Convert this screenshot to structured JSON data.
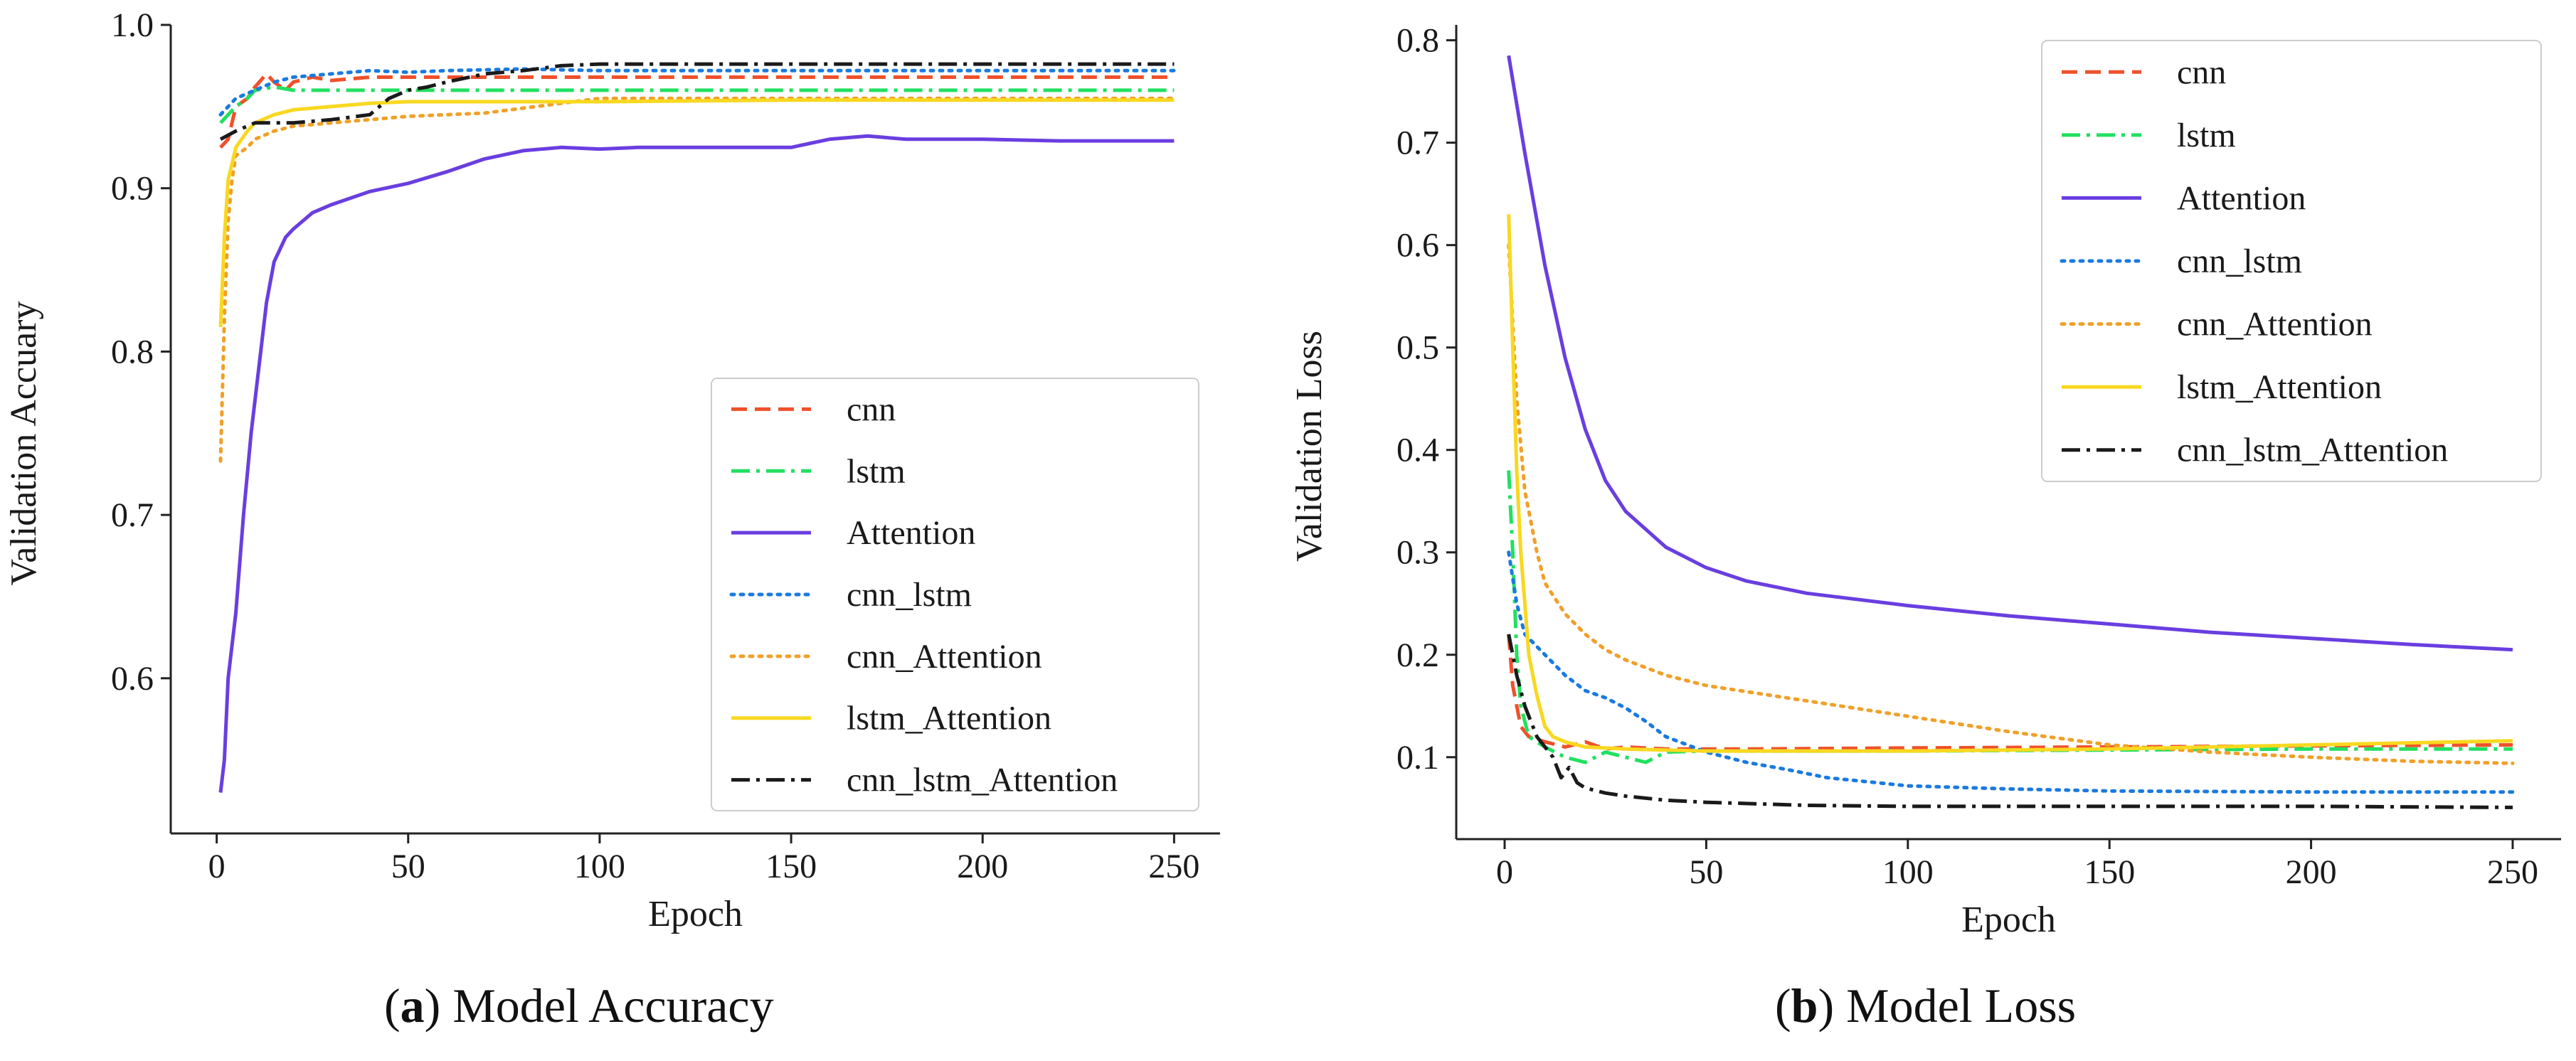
{
  "chart_data": [
    {
      "type": "line",
      "panel": "a",
      "caption_tag": "a",
      "caption_title": "Model Accuracy",
      "xlabel": "Epoch",
      "ylabel": "Validation Accuary",
      "xlim": [
        -12,
        262
      ],
      "ylim": [
        0.505,
        1.0
      ],
      "xticks": [
        0,
        50,
        100,
        150,
        200,
        250
      ],
      "yticks": [
        0.6,
        0.7,
        0.8,
        0.9,
        1.0
      ],
      "ytick_labels": [
        "0.6",
        "0.7",
        "0.8",
        "0.9",
        "1.0"
      ],
      "legend_position": "lower-right",
      "series": [
        {
          "name": "cnn",
          "color": "#f0502a",
          "dash": "dashed",
          "points": [
            [
              1,
              0.925
            ],
            [
              3,
              0.93
            ],
            [
              5,
              0.95
            ],
            [
              8,
              0.955
            ],
            [
              10,
              0.962
            ],
            [
              13,
              0.97
            ],
            [
              15,
              0.965
            ],
            [
              18,
              0.96
            ],
            [
              20,
              0.965
            ],
            [
              25,
              0.968
            ],
            [
              30,
              0.966
            ],
            [
              40,
              0.968
            ],
            [
              60,
              0.968
            ],
            [
              100,
              0.968
            ],
            [
              150,
              0.968
            ],
            [
              200,
              0.968
            ],
            [
              250,
              0.968
            ]
          ]
        },
        {
          "name": "lstm",
          "color": "#22e060",
          "dash": "dashdot",
          "points": [
            [
              1,
              0.94
            ],
            [
              3,
              0.945
            ],
            [
              5,
              0.95
            ],
            [
              8,
              0.955
            ],
            [
              10,
              0.96
            ],
            [
              15,
              0.962
            ],
            [
              20,
              0.96
            ],
            [
              25,
              0.96
            ],
            [
              30,
              0.96
            ],
            [
              50,
              0.96
            ],
            [
              100,
              0.96
            ],
            [
              150,
              0.96
            ],
            [
              200,
              0.96
            ],
            [
              250,
              0.96
            ]
          ]
        },
        {
          "name": "Attention",
          "color": "#6a3ee0",
          "dash": "solid",
          "points": [
            [
              1,
              0.53
            ],
            [
              2,
              0.55
            ],
            [
              3,
              0.6
            ],
            [
              5,
              0.64
            ],
            [
              7,
              0.7
            ],
            [
              9,
              0.75
            ],
            [
              11,
              0.79
            ],
            [
              13,
              0.83
            ],
            [
              15,
              0.855
            ],
            [
              18,
              0.87
            ],
            [
              20,
              0.875
            ],
            [
              25,
              0.885
            ],
            [
              30,
              0.89
            ],
            [
              40,
              0.898
            ],
            [
              50,
              0.903
            ],
            [
              60,
              0.91
            ],
            [
              70,
              0.918
            ],
            [
              80,
              0.923
            ],
            [
              90,
              0.925
            ],
            [
              100,
              0.924
            ],
            [
              110,
              0.925
            ],
            [
              130,
              0.925
            ],
            [
              150,
              0.925
            ],
            [
              160,
              0.93
            ],
            [
              170,
              0.932
            ],
            [
              180,
              0.93
            ],
            [
              200,
              0.93
            ],
            [
              220,
              0.929
            ],
            [
              250,
              0.929
            ]
          ]
        },
        {
          "name": "cnn_lstm",
          "color": "#1a7ae0",
          "dash": "dotted",
          "points": [
            [
              1,
              0.945
            ],
            [
              5,
              0.955
            ],
            [
              10,
              0.96
            ],
            [
              15,
              0.965
            ],
            [
              20,
              0.968
            ],
            [
              30,
              0.97
            ],
            [
              40,
              0.972
            ],
            [
              50,
              0.971
            ],
            [
              60,
              0.972
            ],
            [
              80,
              0.973
            ],
            [
              100,
              0.972
            ],
            [
              150,
              0.972
            ],
            [
              200,
              0.972
            ],
            [
              250,
              0.972
            ]
          ]
        },
        {
          "name": "cnn_Attention",
          "color": "#f0a028",
          "dash": "dotted",
          "points": [
            [
              1,
              0.733
            ],
            [
              2,
              0.82
            ],
            [
              3,
              0.88
            ],
            [
              4,
              0.905
            ],
            [
              5,
              0.92
            ],
            [
              8,
              0.925
            ],
            [
              10,
              0.93
            ],
            [
              15,
              0.935
            ],
            [
              20,
              0.938
            ],
            [
              30,
              0.94
            ],
            [
              40,
              0.942
            ],
            [
              50,
              0.944
            ],
            [
              70,
              0.946
            ],
            [
              100,
              0.955
            ],
            [
              150,
              0.955
            ],
            [
              200,
              0.955
            ],
            [
              250,
              0.955
            ]
          ]
        },
        {
          "name": "lstm_Attention",
          "color": "#f8d820",
          "dash": "solid",
          "points": [
            [
              1,
              0.815
            ],
            [
              2,
              0.87
            ],
            [
              3,
              0.905
            ],
            [
              5,
              0.925
            ],
            [
              8,
              0.935
            ],
            [
              10,
              0.94
            ],
            [
              15,
              0.945
            ],
            [
              20,
              0.948
            ],
            [
              30,
              0.95
            ],
            [
              40,
              0.952
            ],
            [
              50,
              0.953
            ],
            [
              80,
              0.953
            ],
            [
              100,
              0.953
            ],
            [
              150,
              0.954
            ],
            [
              200,
              0.954
            ],
            [
              250,
              0.954
            ]
          ]
        },
        {
          "name": "cnn_lstm_Attention",
          "color": "#1a1a1a",
          "dash": "dashdot",
          "points": [
            [
              1,
              0.93
            ],
            [
              5,
              0.935
            ],
            [
              10,
              0.94
            ],
            [
              20,
              0.94
            ],
            [
              30,
              0.942
            ],
            [
              40,
              0.945
            ],
            [
              45,
              0.955
            ],
            [
              50,
              0.96
            ],
            [
              55,
              0.962
            ],
            [
              60,
              0.965
            ],
            [
              70,
              0.97
            ],
            [
              80,
              0.972
            ],
            [
              90,
              0.975
            ],
            [
              100,
              0.976
            ],
            [
              150,
              0.976
            ],
            [
              200,
              0.976
            ],
            [
              250,
              0.976
            ]
          ]
        }
      ]
    },
    {
      "type": "line",
      "panel": "b",
      "caption_tag": "b",
      "caption_title": "Model Loss",
      "xlabel": "Epoch",
      "ylabel": "Validation Loss",
      "xlim": [
        -12,
        262
      ],
      "ylim": [
        0.02,
        0.815
      ],
      "xticks": [
        0,
        50,
        100,
        150,
        200,
        250
      ],
      "yticks": [
        0.1,
        0.2,
        0.3,
        0.4,
        0.5,
        0.6,
        0.7,
        0.8
      ],
      "ytick_labels": [
        "0.1",
        "0.2",
        "0.3",
        "0.4",
        "0.5",
        "0.6",
        "0.7",
        "0.8"
      ],
      "legend_position": "upper-right",
      "series": [
        {
          "name": "cnn",
          "color": "#f0502a",
          "dash": "dashed",
          "points": [
            [
              1,
              0.22
            ],
            [
              2,
              0.17
            ],
            [
              4,
              0.13
            ],
            [
              6,
              0.12
            ],
            [
              10,
              0.115
            ],
            [
              15,
              0.11
            ],
            [
              20,
              0.115
            ],
            [
              25,
              0.108
            ],
            [
              30,
              0.11
            ],
            [
              40,
              0.108
            ],
            [
              60,
              0.108
            ],
            [
              100,
              0.109
            ],
            [
              150,
              0.11
            ],
            [
              200,
              0.111
            ],
            [
              250,
              0.112
            ]
          ]
        },
        {
          "name": "lstm",
          "color": "#22e060",
          "dash": "dashdot",
          "points": [
            [
              1,
              0.38
            ],
            [
              2,
              0.3
            ],
            [
              3,
              0.2
            ],
            [
              4,
              0.15
            ],
            [
              6,
              0.12
            ],
            [
              10,
              0.11
            ],
            [
              15,
              0.1
            ],
            [
              20,
              0.095
            ],
            [
              25,
              0.105
            ],
            [
              30,
              0.1
            ],
            [
              35,
              0.095
            ],
            [
              40,
              0.105
            ],
            [
              50,
              0.106
            ],
            [
              100,
              0.106
            ],
            [
              150,
              0.107
            ],
            [
              200,
              0.108
            ],
            [
              250,
              0.108
            ]
          ]
        },
        {
          "name": "Attention",
          "color": "#6a3ee0",
          "dash": "solid",
          "points": [
            [
              1,
              0.785
            ],
            [
              5,
              0.69
            ],
            [
              10,
              0.58
            ],
            [
              15,
              0.49
            ],
            [
              20,
              0.42
            ],
            [
              25,
              0.37
            ],
            [
              30,
              0.34
            ],
            [
              40,
              0.305
            ],
            [
              50,
              0.285
            ],
            [
              60,
              0.272
            ],
            [
              75,
              0.26
            ],
            [
              100,
              0.248
            ],
            [
              125,
              0.238
            ],
            [
              150,
              0.23
            ],
            [
              175,
              0.222
            ],
            [
              200,
              0.216
            ],
            [
              225,
              0.21
            ],
            [
              250,
              0.205
            ]
          ]
        },
        {
          "name": "cnn_lstm",
          "color": "#1a7ae0",
          "dash": "dotted",
          "points": [
            [
              1,
              0.3
            ],
            [
              3,
              0.25
            ],
            [
              5,
              0.22
            ],
            [
              10,
              0.2
            ],
            [
              15,
              0.18
            ],
            [
              20,
              0.165
            ],
            [
              25,
              0.158
            ],
            [
              30,
              0.148
            ],
            [
              35,
              0.135
            ],
            [
              40,
              0.12
            ],
            [
              50,
              0.105
            ],
            [
              60,
              0.095
            ],
            [
              70,
              0.088
            ],
            [
              80,
              0.08
            ],
            [
              90,
              0.076
            ],
            [
              100,
              0.072
            ],
            [
              125,
              0.069
            ],
            [
              150,
              0.067
            ],
            [
              200,
              0.066
            ],
            [
              250,
              0.066
            ]
          ]
        },
        {
          "name": "cnn_Attention",
          "color": "#f0a028",
          "dash": "dotted",
          "points": [
            [
              1,
              0.6
            ],
            [
              3,
              0.45
            ],
            [
              5,
              0.36
            ],
            [
              8,
              0.3
            ],
            [
              10,
              0.27
            ],
            [
              15,
              0.24
            ],
            [
              20,
              0.22
            ],
            [
              25,
              0.205
            ],
            [
              30,
              0.195
            ],
            [
              40,
              0.18
            ],
            [
              50,
              0.17
            ],
            [
              75,
              0.155
            ],
            [
              100,
              0.14
            ],
            [
              125,
              0.125
            ],
            [
              150,
              0.112
            ],
            [
              175,
              0.105
            ],
            [
              200,
              0.1
            ],
            [
              225,
              0.096
            ],
            [
              250,
              0.094
            ]
          ]
        },
        {
          "name": "lstm_Attention",
          "color": "#f8d820",
          "dash": "solid",
          "points": [
            [
              1,
              0.63
            ],
            [
              2,
              0.5
            ],
            [
              3,
              0.38
            ],
            [
              4,
              0.3
            ],
            [
              5,
              0.25
            ],
            [
              6,
              0.2
            ],
            [
              8,
              0.16
            ],
            [
              10,
              0.13
            ],
            [
              12,
              0.12
            ],
            [
              15,
              0.115
            ],
            [
              20,
              0.11
            ],
            [
              30,
              0.108
            ],
            [
              50,
              0.106
            ],
            [
              100,
              0.106
            ],
            [
              150,
              0.108
            ],
            [
              200,
              0.112
            ],
            [
              250,
              0.116
            ]
          ]
        },
        {
          "name": "cnn_lstm_Attention",
          "color": "#1a1a1a",
          "dash": "dashdot",
          "points": [
            [
              1,
              0.22
            ],
            [
              3,
              0.18
            ],
            [
              5,
              0.15
            ],
            [
              8,
              0.12
            ],
            [
              10,
              0.11
            ],
            [
              12,
              0.1
            ],
            [
              14,
              0.08
            ],
            [
              16,
              0.09
            ],
            [
              18,
              0.075
            ],
            [
              20,
              0.07
            ],
            [
              25,
              0.065
            ],
            [
              30,
              0.062
            ],
            [
              40,
              0.058
            ],
            [
              50,
              0.056
            ],
            [
              75,
              0.053
            ],
            [
              100,
              0.052
            ],
            [
              150,
              0.052
            ],
            [
              200,
              0.052
            ],
            [
              250,
              0.051
            ]
          ]
        }
      ]
    }
  ]
}
